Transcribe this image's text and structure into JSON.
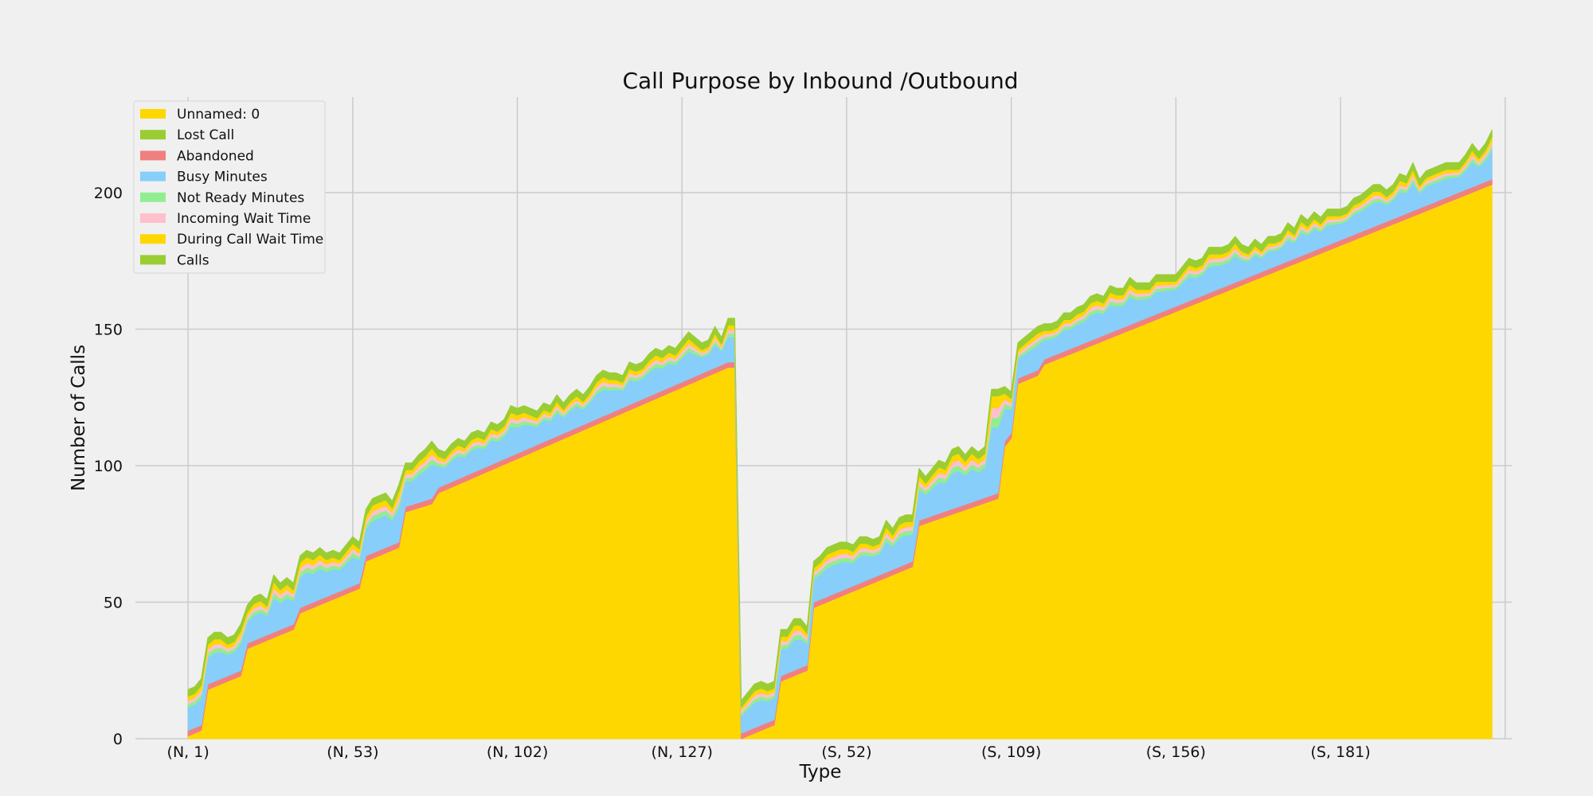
{
  "chart_data": {
    "type": "area",
    "title": "Call Purpose by Inbound /Outbound",
    "xlabel": "Type",
    "ylabel": "Number of Calls",
    "ylim": [
      0,
      235
    ],
    "xlim": [
      -8,
      201
    ],
    "grid": true,
    "legend_position": "top-left",
    "y_ticks": [
      0,
      50,
      100,
      150,
      200
    ],
    "x_ticks": [
      {
        "x": 0,
        "label": "(N, 1)"
      },
      {
        "x": 25,
        "label": "(N, 53)"
      },
      {
        "x": 50,
        "label": "(N, 102)"
      },
      {
        "x": 75,
        "label": "(N, 127)"
      },
      {
        "x": 100,
        "label": "(S, 52)"
      },
      {
        "x": 125,
        "label": "(S, 109)"
      },
      {
        "x": 150,
        "label": "(S, 156)"
      },
      {
        "x": 175,
        "label": "(S, 181)"
      }
    ],
    "totals_anchors": [
      [
        0,
        18
      ],
      [
        1,
        19
      ],
      [
        2,
        22
      ],
      [
        3,
        37
      ],
      [
        4,
        39
      ],
      [
        5,
        39
      ],
      [
        6,
        37
      ],
      [
        7,
        38
      ],
      [
        8,
        42
      ],
      [
        9,
        49
      ],
      [
        10,
        52
      ],
      [
        11,
        53
      ],
      [
        12,
        51
      ],
      [
        13,
        60
      ],
      [
        14,
        57
      ],
      [
        15,
        59
      ],
      [
        16,
        57
      ],
      [
        17,
        67
      ],
      [
        18,
        69
      ],
      [
        19,
        68
      ],
      [
        20,
        70
      ],
      [
        21,
        68
      ],
      [
        22,
        69
      ],
      [
        23,
        68
      ],
      [
        24,
        71
      ],
      [
        25,
        74
      ],
      [
        26,
        72
      ],
      [
        27,
        84
      ],
      [
        28,
        88
      ],
      [
        29,
        89
      ],
      [
        30,
        90
      ],
      [
        31,
        87
      ],
      [
        32,
        93
      ],
      [
        33,
        101
      ],
      [
        34,
        101
      ],
      [
        35,
        104
      ],
      [
        36,
        106
      ],
      [
        37,
        109
      ],
      [
        38,
        106
      ],
      [
        39,
        105
      ],
      [
        40,
        108
      ],
      [
        41,
        110
      ],
      [
        42,
        109
      ],
      [
        43,
        112
      ],
      [
        44,
        113
      ],
      [
        45,
        112
      ],
      [
        46,
        116
      ],
      [
        47,
        115
      ],
      [
        48,
        117
      ],
      [
        49,
        122
      ],
      [
        50,
        121
      ],
      [
        51,
        122
      ],
      [
        52,
        121
      ],
      [
        53,
        120
      ],
      [
        54,
        123
      ],
      [
        55,
        122
      ],
      [
        56,
        126
      ],
      [
        57,
        123
      ],
      [
        58,
        126
      ],
      [
        59,
        128
      ],
      [
        60,
        126
      ],
      [
        61,
        129
      ],
      [
        62,
        133
      ],
      [
        63,
        135
      ],
      [
        64,
        134
      ],
      [
        65,
        134
      ],
      [
        66,
        133
      ],
      [
        67,
        138
      ],
      [
        68,
        137
      ],
      [
        69,
        138
      ],
      [
        70,
        141
      ],
      [
        71,
        143
      ],
      [
        72,
        142
      ],
      [
        73,
        144
      ],
      [
        74,
        143
      ],
      [
        75,
        146
      ],
      [
        76,
        149
      ],
      [
        77,
        147
      ],
      [
        78,
        145
      ],
      [
        79,
        146
      ],
      [
        80,
        151
      ],
      [
        81,
        147
      ],
      [
        82,
        154
      ],
      [
        83,
        154
      ],
      [
        84,
        14
      ],
      [
        85,
        17
      ],
      [
        86,
        20
      ],
      [
        87,
        21
      ],
      [
        88,
        20
      ],
      [
        89,
        21
      ],
      [
        90,
        40
      ],
      [
        91,
        40
      ],
      [
        92,
        44
      ],
      [
        93,
        44
      ],
      [
        94,
        41
      ],
      [
        95,
        65
      ],
      [
        96,
        67
      ],
      [
        97,
        70
      ],
      [
        98,
        71
      ],
      [
        99,
        72
      ],
      [
        100,
        72
      ],
      [
        101,
        71
      ],
      [
        102,
        74
      ],
      [
        103,
        74
      ],
      [
        104,
        73
      ],
      [
        105,
        74
      ],
      [
        106,
        80
      ],
      [
        107,
        77
      ],
      [
        108,
        81
      ],
      [
        109,
        82
      ],
      [
        110,
        82
      ],
      [
        111,
        99
      ],
      [
        112,
        96
      ],
      [
        113,
        99
      ],
      [
        114,
        102
      ],
      [
        115,
        101
      ],
      [
        116,
        106
      ],
      [
        117,
        107
      ],
      [
        118,
        104
      ],
      [
        119,
        107
      ],
      [
        120,
        105
      ],
      [
        121,
        107
      ],
      [
        122,
        128
      ],
      [
        123,
        128
      ],
      [
        124,
        129
      ],
      [
        125,
        127
      ],
      [
        126,
        145
      ],
      [
        127,
        147
      ],
      [
        128,
        149
      ],
      [
        129,
        151
      ],
      [
        130,
        152
      ],
      [
        131,
        152
      ],
      [
        132,
        153
      ],
      [
        133,
        156
      ],
      [
        134,
        156
      ],
      [
        135,
        158
      ],
      [
        136,
        159
      ],
      [
        137,
        162
      ],
      [
        138,
        163
      ],
      [
        139,
        162
      ],
      [
        140,
        166
      ],
      [
        141,
        165
      ],
      [
        142,
        165
      ],
      [
        143,
        169
      ],
      [
        144,
        167
      ],
      [
        145,
        167
      ],
      [
        146,
        167
      ],
      [
        147,
        170
      ],
      [
        148,
        170
      ],
      [
        149,
        170
      ],
      [
        150,
        170
      ],
      [
        151,
        173
      ],
      [
        152,
        176
      ],
      [
        153,
        175
      ],
      [
        154,
        176
      ],
      [
        155,
        180
      ],
      [
        156,
        180
      ],
      [
        157,
        180
      ],
      [
        158,
        181
      ],
      [
        159,
        184
      ],
      [
        160,
        181
      ],
      [
        161,
        180
      ],
      [
        162,
        183
      ],
      [
        163,
        181
      ],
      [
        164,
        184
      ],
      [
        165,
        184
      ],
      [
        166,
        185
      ],
      [
        167,
        189
      ],
      [
        168,
        187
      ],
      [
        169,
        192
      ],
      [
        170,
        190
      ],
      [
        171,
        193
      ],
      [
        172,
        191
      ],
      [
        173,
        194
      ],
      [
        174,
        194
      ],
      [
        175,
        194
      ],
      [
        176,
        195
      ],
      [
        177,
        198
      ],
      [
        178,
        199
      ],
      [
        179,
        201
      ],
      [
        180,
        203
      ],
      [
        181,
        203
      ],
      [
        182,
        201
      ],
      [
        183,
        203
      ],
      [
        184,
        207
      ],
      [
        185,
        206
      ],
      [
        186,
        211
      ],
      [
        187,
        205
      ],
      [
        188,
        208
      ],
      [
        189,
        209
      ],
      [
        190,
        210
      ],
      [
        191,
        211
      ],
      [
        192,
        211
      ],
      [
        193,
        211
      ],
      [
        194,
        214
      ],
      [
        195,
        218
      ],
      [
        196,
        215
      ],
      [
        197,
        218
      ],
      [
        198,
        223
      ]
    ],
    "base_anchors": [
      [
        0,
        1
      ],
      [
        2,
        3
      ],
      [
        3,
        18
      ],
      [
        8,
        23
      ],
      [
        9,
        33
      ],
      [
        16,
        40
      ],
      [
        17,
        46
      ],
      [
        18,
        47
      ],
      [
        26,
        55
      ],
      [
        27,
        65
      ],
      [
        32,
        70
      ],
      [
        33,
        83
      ],
      [
        37,
        86
      ],
      [
        38,
        90
      ],
      [
        82,
        136
      ],
      [
        83,
        136
      ],
      [
        84,
        0
      ],
      [
        89,
        5
      ],
      [
        90,
        21
      ],
      [
        94,
        25
      ],
      [
        95,
        48
      ],
      [
        110,
        63
      ],
      [
        111,
        78
      ],
      [
        123,
        88
      ],
      [
        124,
        107
      ],
      [
        125,
        110
      ],
      [
        126,
        130
      ],
      [
        129,
        133
      ],
      [
        130,
        137
      ],
      [
        198,
        203
      ]
    ],
    "series": [
      {
        "name": "Unnamed: 0",
        "color": "#ffd700",
        "component": "base"
      },
      {
        "name": "Abandoned",
        "color": "#f08080",
        "component": "band",
        "thickness": 2
      },
      {
        "name": "Busy Minutes",
        "color": "#87cefa",
        "component": "rest_share",
        "share": 0.68
      },
      {
        "name": "Not Ready Minutes",
        "color": "#90ee90",
        "component": "rest_share",
        "share": 0.1
      },
      {
        "name": "Incoming Wait Time",
        "color": "#ffc0cb",
        "component": "rest_share",
        "share": 0.1
      },
      {
        "name": "During Call Wait Time",
        "color": "#ffd700",
        "component": "rest_share",
        "share": 0.12
      },
      {
        "name": "Calls",
        "color": "#9acd32",
        "component": "band",
        "thickness": 2.5
      }
    ],
    "legend": [
      {
        "label": "Unnamed: 0",
        "color": "#ffd700"
      },
      {
        "label": "Lost Call",
        "color": "#9acd32"
      },
      {
        "label": "Abandoned",
        "color": "#f08080"
      },
      {
        "label": "Busy Minutes",
        "color": "#87cefa"
      },
      {
        "label": "Not Ready Minutes",
        "color": "#90ee90"
      },
      {
        "label": "Incoming Wait Time",
        "color": "#ffc0cb"
      },
      {
        "label": "During Call Wait Time",
        "color": "#ffd700"
      },
      {
        "label": "Calls",
        "color": "#9acd32"
      }
    ]
  }
}
